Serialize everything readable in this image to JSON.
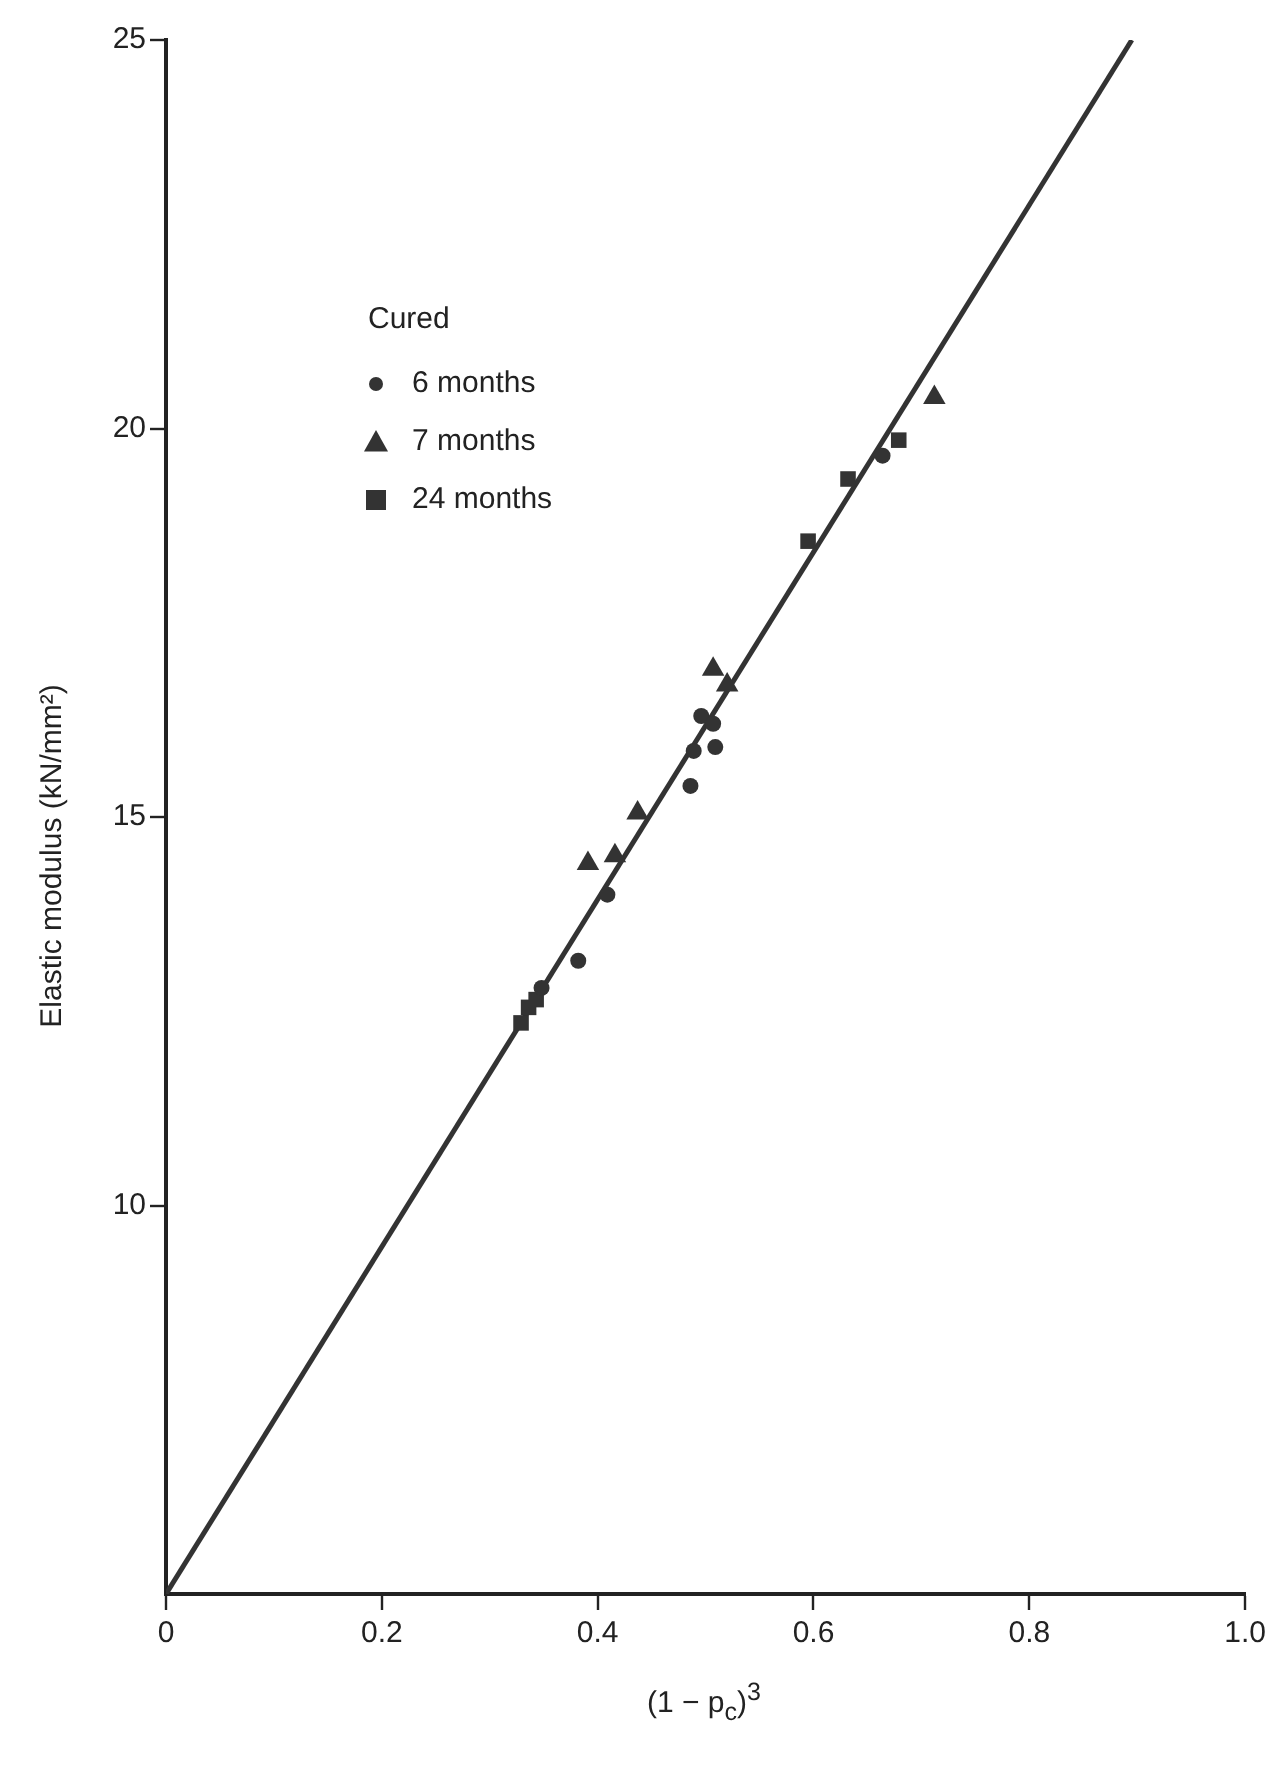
{
  "chart_data": {
    "type": "scatter",
    "xlabel": "(1 − p$_{c}$)$^{3}$",
    "ylabel": "Elastic modulus (kN/mm²)",
    "legend_title": "Cured",
    "legend": "top left",
    "grid": false,
    "xlim": [
      0,
      1
    ],
    "xticks": [
      0,
      0.2,
      0.4,
      0.6,
      0.8,
      {
        "value": 1,
        "label": "1.0"
      }
    ],
    "ylim": [
      5,
      25
    ],
    "yticks": [
      10,
      15,
      20,
      25
    ],
    "series": [
      {
        "name": "6 months",
        "color": "#333333",
        "marker": "circle",
        "x": [
          0.496,
          0.507,
          0.489,
          0.509,
          0.486,
          0.409,
          0.382,
          0.348,
          0.664
        ],
        "values": [
          16.3,
          16.2,
          15.85,
          15.9,
          15.4,
          14.0,
          13.15,
          12.8,
          19.65
        ]
      },
      {
        "name": "7 months",
        "color": "#333333",
        "marker": "triangle",
        "x": [
          0.507,
          0.52,
          0.437,
          0.416,
          0.391,
          0.712
        ],
        "values": [
          16.9,
          16.7,
          15.05,
          14.5,
          14.4,
          20.4
        ]
      },
      {
        "name": "24 months",
        "color": "#333333",
        "marker": "square",
        "x": [
          0.329,
          0.336,
          0.343,
          0.595,
          0.632,
          0.679
        ],
        "values": [
          12.35,
          12.55,
          12.65,
          18.55,
          19.35,
          19.85
        ]
      },
      {
        "type": "line",
        "color": "#333333",
        "marker": "none",
        "x": [
          0,
          0.895
        ],
        "values": [
          5,
          25
        ]
      }
    ]
  }
}
